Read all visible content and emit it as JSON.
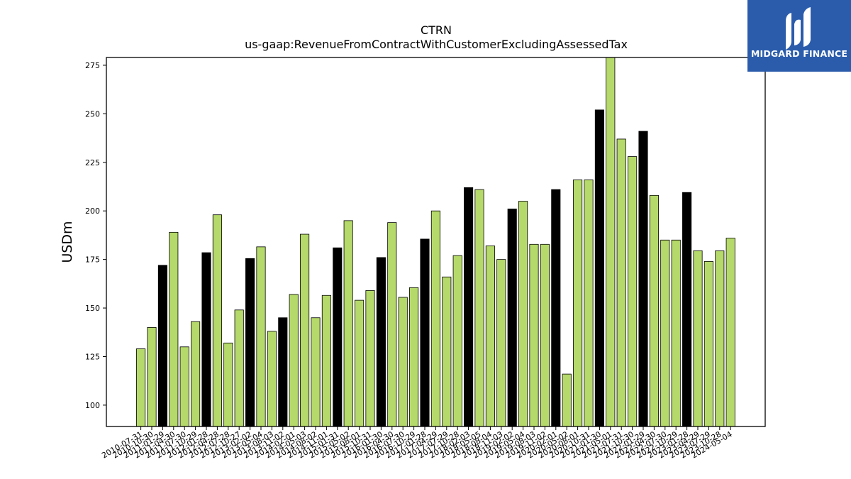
{
  "chart_data": {
    "type": "bar",
    "title": "CTRN",
    "subtitle": "us-gaap:RevenueFromContractWithCustomerExcludingAssessedTax",
    "ylabel": "USDm",
    "ylim": [
      89,
      279
    ],
    "yticks": [
      100,
      125,
      150,
      175,
      200,
      225,
      250,
      275
    ],
    "colors": {
      "quarter": "#b5d96a",
      "annual": "#000000",
      "edge": "#000000"
    },
    "categories": [
      "2010-07-31",
      "2010-10-30",
      "2011-01-29",
      "2011-04-30",
      "2011-07-30",
      "2011-10-29",
      "2012-01-28",
      "2012-04-28",
      "2012-07-28",
      "2012-10-27",
      "2013-02-02",
      "2013-05-04",
      "2013-08-03",
      "2013-11-02",
      "2014-02-01",
      "2014-05-03",
      "2014-08-02",
      "2014-11-01",
      "2015-01-31",
      "2015-05-02",
      "2015-08-01",
      "2015-10-31",
      "2016-01-30",
      "2016-04-30",
      "2016-07-30",
      "2016-10-29",
      "2017-01-28",
      "2017-04-29",
      "2017-07-29",
      "2017-10-28",
      "2018-02-03",
      "2018-05-05",
      "2018-08-04",
      "2018-11-03",
      "2019-02-02",
      "2019-05-04",
      "2019-08-03",
      "2019-11-02",
      "2020-02-01",
      "2020-05-02",
      "2020-08-01",
      "2020-10-31",
      "2021-01-30",
      "2021-05-01",
      "2021-07-31",
      "2021-10-30",
      "2022-01-29",
      "2022-04-30",
      "2022-07-30",
      "2022-10-29",
      "2023-01-28",
      "2023-04-29",
      "2023-07-29",
      "2023-10-28",
      "2024-05-04"
    ],
    "values": [
      129,
      140,
      172,
      189,
      130,
      143,
      178.5,
      198,
      132,
      149,
      175.5,
      181.5,
      138,
      145,
      157,
      188,
      145,
      156.5,
      181,
      195,
      154,
      159,
      176,
      194,
      155.5,
      160.5,
      185.5,
      200,
      166,
      177,
      212,
      211,
      182,
      175,
      201,
      205,
      182.8,
      182.8,
      211,
      116,
      216,
      216,
      252,
      279,
      237,
      228,
      241,
      208,
      185,
      185,
      209.5,
      179.5,
      174,
      179.5,
      186
    ],
    "annual": [
      false,
      false,
      true,
      false,
      false,
      false,
      true,
      false,
      false,
      false,
      true,
      false,
      false,
      true,
      false,
      false,
      false,
      false,
      true,
      false,
      false,
      false,
      true,
      false,
      false,
      false,
      true,
      false,
      false,
      false,
      true,
      false,
      false,
      false,
      true,
      false,
      false,
      false,
      true,
      false,
      false,
      false,
      true,
      false,
      false,
      false,
      true,
      false,
      false,
      false,
      true,
      false,
      false,
      false,
      false
    ],
    "grid": false,
    "legend": "none"
  },
  "logo": {
    "text": "MIDGARD FINANCE",
    "icon": "midgard-logo-icon"
  }
}
